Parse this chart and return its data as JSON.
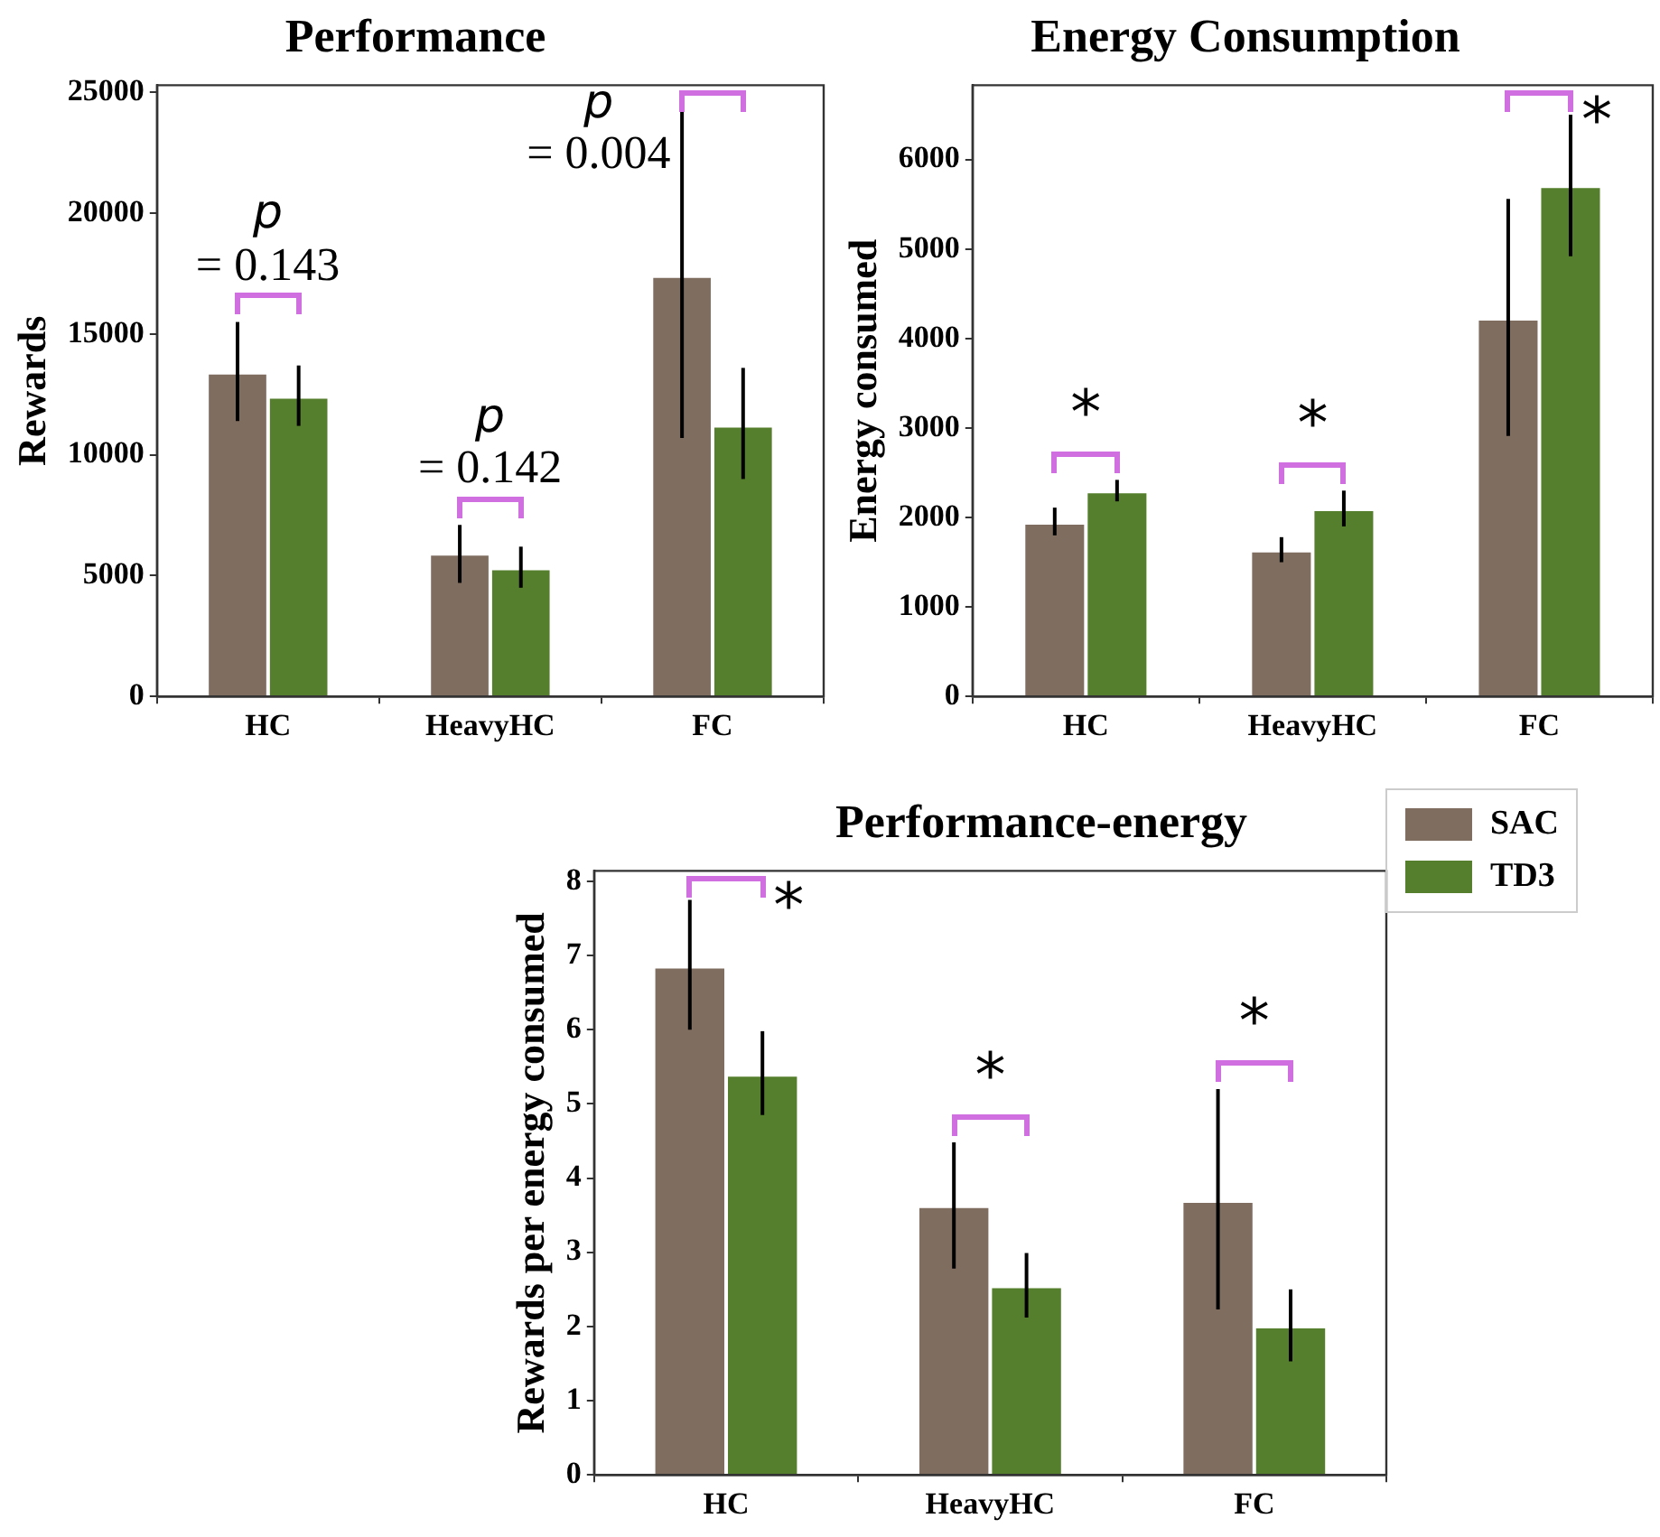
{
  "chart_data": [
    {
      "type": "bar",
      "title": "Performance",
      "ylabel": "Rewards",
      "categories": [
        "HC",
        "HeavyHC",
        "FC"
      ],
      "series": [
        {
          "color": "#7f6d5f",
          "values": [
            13400,
            5900,
            17400
          ],
          "errors": [
            [
              11400,
              15500
            ],
            [
              4700,
              7100
            ],
            [
              10700,
              24200
            ]
          ]
        },
        {
          "color": "#557f2d",
          "values": [
            12400,
            5300,
            11200
          ],
          "errors": [
            [
              11200,
              13700
            ],
            [
              4500,
              6200
            ],
            [
              9000,
              13600
            ]
          ]
        }
      ],
      "ylim": [
        0,
        25300
      ],
      "yticks": [
        0,
        5000,
        10000,
        15000,
        20000,
        25000
      ],
      "grid": false,
      "legend": false,
      "annotations": [
        "p = 0.143",
        "p = 0.142",
        "p = 0.004"
      ]
    },
    {
      "type": "bar",
      "title": "Energy Consumption",
      "ylabel": "Energy consumed",
      "categories": [
        "HC",
        "HeavyHC",
        "FC"
      ],
      "series": [
        {
          "color": "#7f6d5f",
          "values": [
            1940,
            1630,
            4220
          ],
          "errors": [
            [
              1800,
              2110
            ],
            [
              1500,
              1780
            ],
            [
              2910,
              5560
            ]
          ]
        },
        {
          "color": "#557f2d",
          "values": [
            2290,
            2090,
            5700
          ],
          "errors": [
            [
              2180,
              2420
            ],
            [
              1900,
              2300
            ],
            [
              4920,
              6500
            ]
          ]
        }
      ],
      "ylim": [
        0,
        6830
      ],
      "yticks": [
        0,
        1000,
        2000,
        3000,
        4000,
        5000,
        6000
      ],
      "grid": false,
      "legend": false,
      "annotations": [
        "*",
        "*",
        "*"
      ]
    },
    {
      "type": "bar",
      "title": "Performance-energy",
      "ylabel": "Rewards per energy consumed",
      "categories": [
        "HC",
        "HeavyHC",
        "FC"
      ],
      "series": [
        {
          "name": "SAC",
          "color": "#7f6d5f",
          "values": [
            6.85,
            3.62,
            3.69
          ],
          "errors": [
            [
              6.0,
              7.75
            ],
            [
              2.78,
              4.48
            ],
            [
              2.23,
              5.2
            ]
          ]
        },
        {
          "name": "TD3",
          "color": "#557f2d",
          "values": [
            5.39,
            2.54,
            2.0
          ],
          "errors": [
            [
              4.85,
              5.98
            ],
            [
              2.12,
              2.99
            ],
            [
              1.53,
              2.5
            ]
          ]
        }
      ],
      "ylim": [
        0,
        8.14
      ],
      "yticks": [
        0,
        1,
        2,
        3,
        4,
        5,
        6,
        7,
        8
      ],
      "grid": false,
      "legend": "top right",
      "annotations": [
        "*",
        "*",
        "*"
      ]
    }
  ]
}
